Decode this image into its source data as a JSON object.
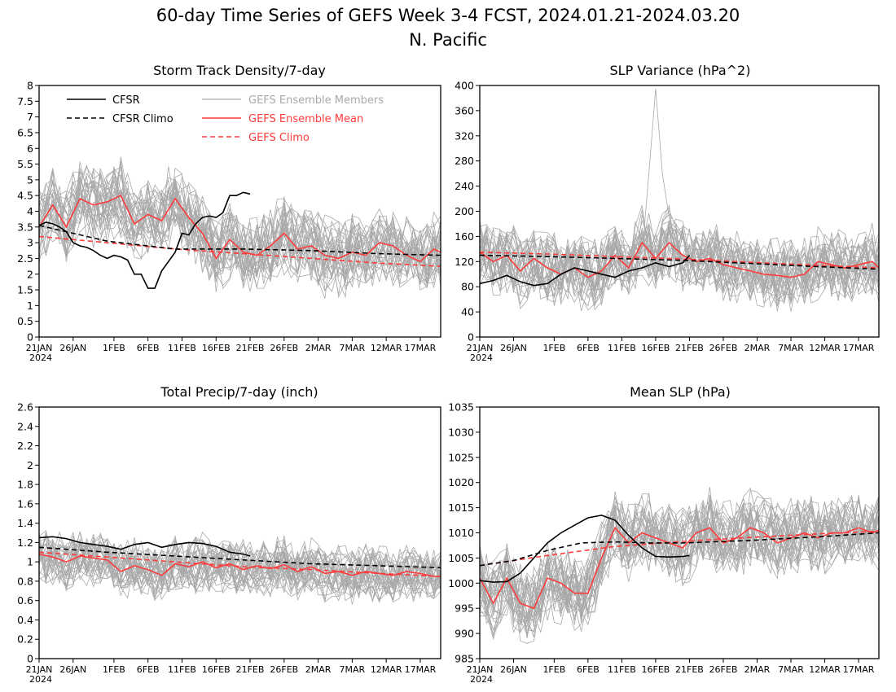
{
  "title_line1": "60-day Time Series of GEFS Week 3-4 FCST, 2024.01.21-2024.03.20",
  "title_line2": "N. Pacific",
  "colors": {
    "cfsr": "#000000",
    "members": "#a9a9a9",
    "gefs": "#ff3b3b"
  },
  "legend": {
    "cfsr": "CFSR",
    "cfsr_climo": "CFSR Climo",
    "members": "GEFS Ensemble Members",
    "mean": "GEFS Ensemble Mean",
    "gefs_climo": "GEFS Climo"
  },
  "chart_data": [
    {
      "type": "line",
      "title": "Storm Track Density/7-day",
      "x_ticks": [
        "21JAN",
        "26JAN",
        "1FEB",
        "6FEB",
        "11FEB",
        "16FEB",
        "21FEB",
        "26FEB",
        "2MAR",
        "7MAR",
        "12MAR",
        "17MAR"
      ],
      "x_year": "2024",
      "x_range": [
        "2024-01-21",
        "2024-03-20"
      ],
      "ylim": [
        0,
        8
      ],
      "y_ticks": [
        "0",
        "0.5",
        "1",
        "1.5",
        "2",
        "2.5",
        "3",
        "3.5",
        "4",
        "4.5",
        "5",
        "5.5",
        "6",
        "6.5",
        "7",
        "7.5",
        "8"
      ],
      "member_spread": {
        "count": 31,
        "amplitude": 1.1
      },
      "series": [
        {
          "name": "CFSR",
          "x": [
            0,
            1,
            2,
            3,
            4,
            5,
            6,
            7,
            8,
            9,
            10,
            11,
            12,
            13,
            14,
            15,
            16,
            17,
            18,
            19,
            20,
            21,
            22,
            23,
            24,
            25,
            26,
            27,
            28,
            29,
            30,
            31
          ],
          "values": [
            3.55,
            3.65,
            3.6,
            3.5,
            3.35,
            3.0,
            2.9,
            2.85,
            2.75,
            2.6,
            2.5,
            2.6,
            2.55,
            2.45,
            2.0,
            2.0,
            1.55,
            1.55,
            2.1,
            2.4,
            2.7,
            3.3,
            3.25,
            3.6,
            3.8,
            3.85,
            3.8,
            3.95,
            4.5,
            4.5,
            4.6,
            4.55
          ]
        },
        {
          "name": "CFSR Climo",
          "x": [
            0,
            10,
            20,
            30,
            40,
            50,
            59
          ],
          "values": [
            3.55,
            3.05,
            2.8,
            2.8,
            2.75,
            2.65,
            2.6
          ]
        },
        {
          "name": "GEFS Ensemble Mean",
          "x": [
            0,
            2,
            4,
            6,
            8,
            10,
            12,
            14,
            16,
            18,
            20,
            22,
            24,
            26,
            28,
            30,
            32,
            34,
            36,
            38,
            40,
            42,
            44,
            46,
            48,
            50,
            52,
            54,
            56,
            58,
            59
          ],
          "values": [
            3.5,
            4.2,
            3.5,
            4.4,
            4.2,
            4.3,
            4.5,
            3.6,
            3.9,
            3.7,
            4.4,
            3.8,
            3.3,
            2.5,
            3.1,
            2.7,
            2.6,
            2.9,
            3.3,
            2.8,
            2.9,
            2.6,
            2.5,
            2.7,
            2.6,
            3.0,
            2.9,
            2.6,
            2.4,
            2.8,
            2.7
          ]
        },
        {
          "name": "GEFS Climo",
          "x": [
            0,
            10,
            20,
            30,
            40,
            50,
            59
          ],
          "values": [
            3.2,
            3.0,
            2.8,
            2.65,
            2.5,
            2.35,
            2.25
          ]
        }
      ]
    },
    {
      "type": "line",
      "title": "SLP Variance (hPa^2)",
      "x_ticks": [
        "21JAN",
        "26JAN",
        "1FEB",
        "6FEB",
        "11FEB",
        "16FEB",
        "21FEB",
        "26FEB",
        "2MAR",
        "7MAR",
        "12MAR",
        "17MAR"
      ],
      "x_year": "2024",
      "x_range": [
        "2024-01-21",
        "2024-03-20"
      ],
      "ylim": [
        0,
        400
      ],
      "y_ticks": [
        "0",
        "40",
        "80",
        "120",
        "160",
        "200",
        "240",
        "280",
        "320",
        "360",
        "400"
      ],
      "member_spread": {
        "count": 31,
        "amplitude": 50
      },
      "series": [
        {
          "name": "CFSR",
          "x": [
            0,
            2,
            4,
            6,
            8,
            10,
            12,
            14,
            16,
            18,
            20,
            22,
            24,
            26,
            28,
            30,
            31
          ],
          "values": [
            85,
            90,
            98,
            88,
            82,
            85,
            100,
            110,
            105,
            100,
            95,
            105,
            110,
            118,
            112,
            118,
            130
          ]
        },
        {
          "name": "CFSR Climo",
          "x": [
            0,
            10,
            20,
            30,
            40,
            50,
            59
          ],
          "values": [
            130,
            128,
            125,
            122,
            117,
            112,
            108
          ]
        },
        {
          "name": "GEFS Ensemble Mean",
          "x": [
            0,
            2,
            4,
            6,
            8,
            10,
            12,
            14,
            16,
            18,
            20,
            22,
            24,
            26,
            28,
            30,
            32,
            34,
            36,
            38,
            40,
            42,
            44,
            46,
            48,
            50,
            52,
            54,
            56,
            58,
            59
          ],
          "values": [
            135,
            120,
            130,
            105,
            125,
            110,
            100,
            110,
            95,
            105,
            130,
            110,
            150,
            125,
            150,
            130,
            120,
            125,
            115,
            110,
            105,
            100,
            98,
            95,
            100,
            120,
            115,
            110,
            115,
            120,
            110
          ]
        },
        {
          "name": "GEFS Climo",
          "x": [
            0,
            10,
            20,
            30,
            40,
            50,
            59
          ],
          "values": [
            135,
            132,
            128,
            124,
            119,
            114,
            110
          ]
        }
      ]
    },
    {
      "type": "line",
      "title": "Total Precip/7-day (inch)",
      "x_ticks": [
        "21JAN",
        "26JAN",
        "1FEB",
        "6FEB",
        "11FEB",
        "16FEB",
        "21FEB",
        "26FEB",
        "2MAR",
        "7MAR",
        "12MAR",
        "17MAR"
      ],
      "x_year": "2024",
      "x_range": [
        "2024-01-21",
        "2024-03-20"
      ],
      "ylim": [
        0,
        2.6
      ],
      "y_ticks": [
        "0",
        "0.2",
        "0.4",
        "0.6",
        "0.8",
        "1",
        "1.2",
        "1.4",
        "1.6",
        "1.8",
        "2",
        "2.2",
        "2.4",
        "2.6"
      ],
      "member_spread": {
        "count": 31,
        "amplitude": 0.25
      },
      "series": [
        {
          "name": "CFSR",
          "x": [
            0,
            2,
            4,
            6,
            8,
            10,
            12,
            14,
            16,
            18,
            20,
            22,
            24,
            26,
            28,
            30,
            31
          ],
          "values": [
            1.25,
            1.26,
            1.24,
            1.2,
            1.18,
            1.16,
            1.13,
            1.18,
            1.2,
            1.15,
            1.18,
            1.2,
            1.19,
            1.16,
            1.1,
            1.08,
            1.06
          ]
        },
        {
          "name": "CFSR Climo",
          "x": [
            0,
            10,
            20,
            30,
            40,
            50,
            59
          ],
          "values": [
            1.15,
            1.1,
            1.06,
            1.02,
            0.98,
            0.96,
            0.94
          ]
        },
        {
          "name": "GEFS Ensemble Mean",
          "x": [
            0,
            2,
            4,
            6,
            8,
            10,
            12,
            14,
            16,
            18,
            20,
            22,
            24,
            26,
            28,
            30,
            32,
            34,
            36,
            38,
            40,
            42,
            44,
            46,
            48,
            50,
            52,
            54,
            56,
            58,
            59
          ],
          "values": [
            1.08,
            1.05,
            1.0,
            1.06,
            1.04,
            1.02,
            0.9,
            0.96,
            0.92,
            0.86,
            0.98,
            0.95,
            1.0,
            0.94,
            0.98,
            0.92,
            0.96,
            0.93,
            0.97,
            0.9,
            0.95,
            0.88,
            0.9,
            0.86,
            0.9,
            0.88,
            0.86,
            0.9,
            0.88,
            0.85,
            0.85
          ]
        },
        {
          "name": "GEFS Climo",
          "x": [
            0,
            10,
            20,
            30,
            40,
            50,
            59
          ],
          "values": [
            1.1,
            1.05,
            1.0,
            0.95,
            0.92,
            0.88,
            0.85
          ]
        }
      ]
    },
    {
      "type": "line",
      "title": "Mean SLP (hPa)",
      "x_ticks": [
        "21JAN",
        "26JAN",
        "1FEB",
        "6FEB",
        "11FEB",
        "16FEB",
        "21FEB",
        "26FEB",
        "2MAR",
        "7MAR",
        "12MAR",
        "17MAR"
      ],
      "x_year": "2024",
      "x_range": [
        "2024-01-21",
        "2024-03-20"
      ],
      "ylim": [
        985,
        1035
      ],
      "y_ticks": [
        "985",
        "990",
        "995",
        "1000",
        "1005",
        "1010",
        "1015",
        "1020",
        "1025",
        "1030",
        "1035"
      ],
      "member_spread": {
        "count": 31,
        "amplitude": 7
      },
      "series": [
        {
          "name": "CFSR",
          "x": [
            0,
            2,
            4,
            6,
            8,
            10,
            12,
            14,
            16,
            18,
            20,
            22,
            24,
            26,
            28,
            30,
            31
          ],
          "values": [
            1000.5,
            1000.2,
            1000.3,
            1002,
            1005,
            1008,
            1010,
            1011.5,
            1013,
            1013.5,
            1012.5,
            1009.5,
            1007,
            1005.3,
            1005.2,
            1005.3,
            1005.5
          ]
        },
        {
          "name": "CFSR Climo",
          "x": [
            0,
            5,
            10,
            15,
            20,
            25,
            30,
            40,
            50,
            59
          ],
          "values": [
            1003.5,
            1004.5,
            1006.5,
            1008,
            1008.2,
            1008,
            1008,
            1008.5,
            1009.2,
            1010
          ]
        },
        {
          "name": "GEFS Ensemble Mean",
          "x": [
            0,
            2,
            4,
            6,
            8,
            10,
            12,
            14,
            16,
            18,
            20,
            22,
            24,
            26,
            28,
            30,
            32,
            34,
            36,
            38,
            40,
            42,
            44,
            46,
            48,
            50,
            52,
            54,
            56,
            58,
            59
          ],
          "values": [
            1001,
            996,
            1001,
            996,
            995,
            1001,
            1000,
            998,
            998,
            1005,
            1011,
            1008,
            1010,
            1009,
            1008,
            1007,
            1010,
            1011,
            1008,
            1009,
            1011,
            1010,
            1008,
            1009,
            1010,
            1009,
            1010,
            1010,
            1011,
            1010,
            1010.5
          ]
        },
        {
          "name": "GEFS Climo",
          "x": [
            0,
            10,
            20,
            30,
            40,
            50,
            59
          ],
          "values": [
            1003.5,
            1005.5,
            1007.3,
            1008.3,
            1009.1,
            1009.8,
            1010.3
          ]
        }
      ]
    }
  ]
}
